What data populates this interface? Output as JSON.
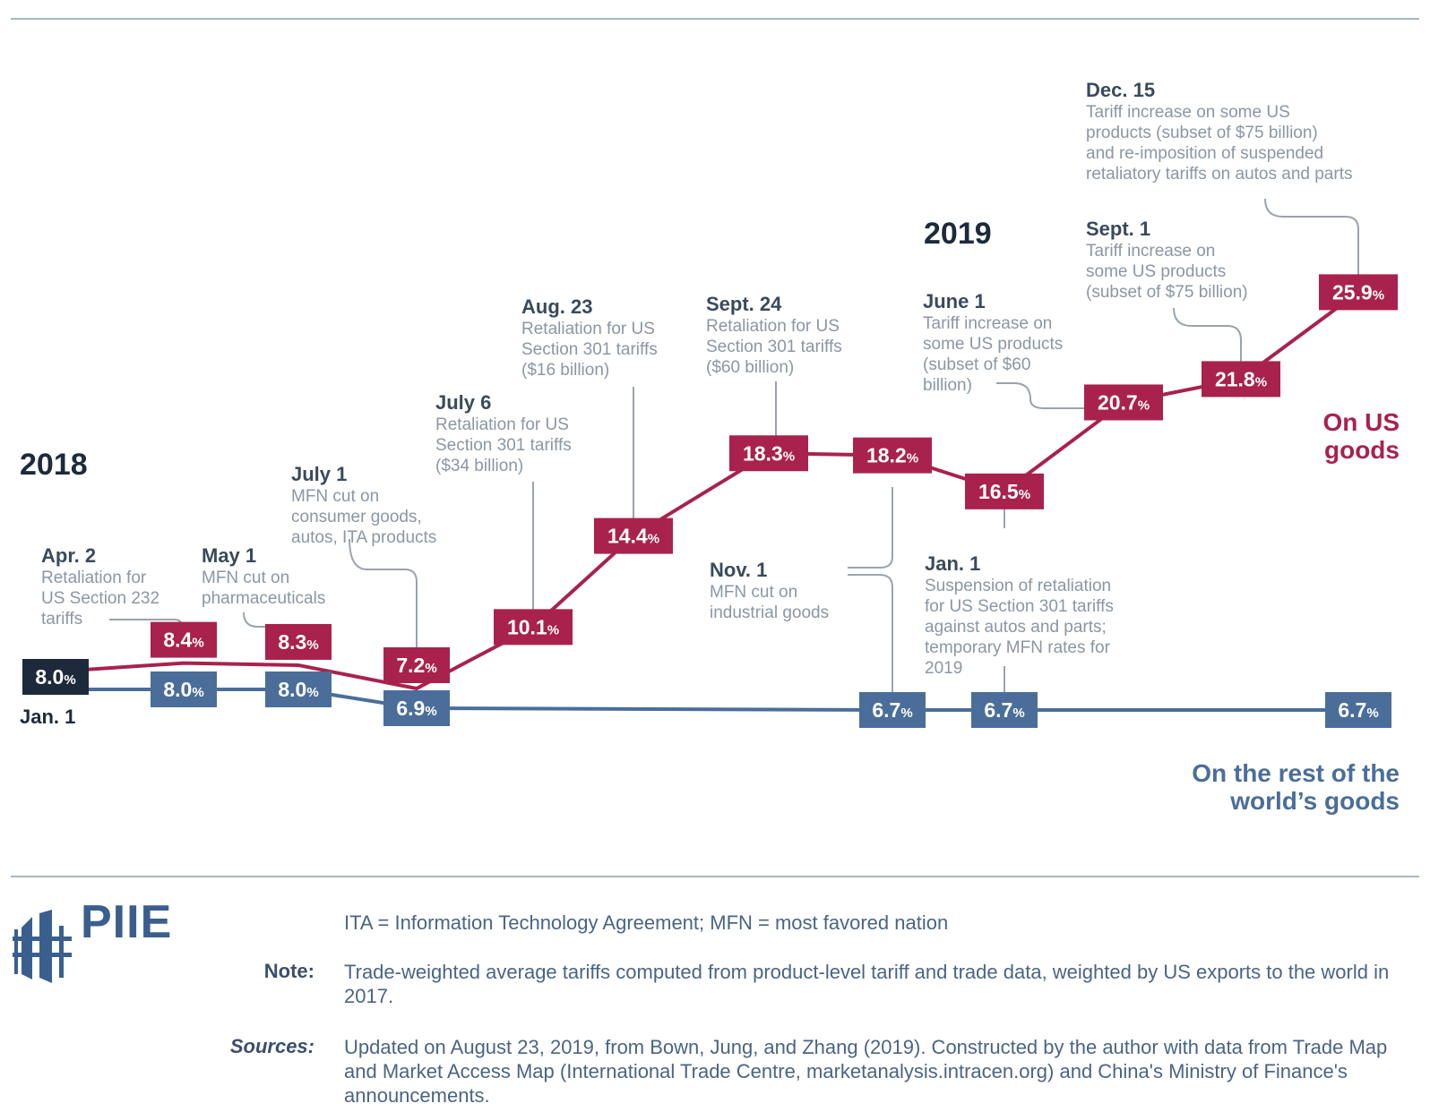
{
  "years": {
    "y2018": "2018",
    "y2019": "2019"
  },
  "chart_data": {
    "type": "line",
    "unit": "%",
    "colors": {
      "us": "#a8224d",
      "world": "#4a6e99",
      "start": "#1c2a3b",
      "leader": "#9aa3ad"
    },
    "series": [
      {
        "name": "On US goods",
        "points": [
          {
            "date": "2018-01-01",
            "value": 8.0,
            "label": "8.0"
          },
          {
            "date": "2018-04-02",
            "value": 8.4,
            "label": "8.4"
          },
          {
            "date": "2018-05-01",
            "value": 8.3,
            "label": "8.3"
          },
          {
            "date": "2018-07-01",
            "value": 7.2,
            "label": "7.2"
          },
          {
            "date": "2018-07-06",
            "value": 10.1,
            "label": "10.1"
          },
          {
            "date": "2018-08-23",
            "value": 14.4,
            "label": "14.4"
          },
          {
            "date": "2018-09-24",
            "value": 18.3,
            "label": "18.3"
          },
          {
            "date": "2018-11-01",
            "value": 18.2,
            "label": "18.2"
          },
          {
            "date": "2019-01-01",
            "value": 16.5,
            "label": "16.5"
          },
          {
            "date": "2019-06-01",
            "value": 20.7,
            "label": "20.7"
          },
          {
            "date": "2019-09-01",
            "value": 21.8,
            "label": "21.8"
          },
          {
            "date": "2019-12-15",
            "value": 25.9,
            "label": "25.9"
          }
        ]
      },
      {
        "name": "On the rest of the world’s goods",
        "points": [
          {
            "date": "2018-01-01",
            "value": 8.0,
            "label": "8.0"
          },
          {
            "date": "2018-04-02",
            "value": 8.0,
            "label": "8.0"
          },
          {
            "date": "2018-05-01",
            "value": 8.0,
            "label": "8.0"
          },
          {
            "date": "2018-07-01",
            "value": 6.9,
            "label": "6.9"
          },
          {
            "date": "2018-11-01",
            "value": 6.7,
            "label": "6.7"
          },
          {
            "date": "2019-01-01",
            "value": 6.7,
            "label": "6.7"
          },
          {
            "date": "2019-12-15",
            "value": 6.7,
            "label": "6.7"
          }
        ]
      }
    ],
    "start_label": "Jan. 1",
    "series_labels": {
      "us": "On US\ngoods",
      "world": "On the rest of the\nworld’s goods"
    },
    "annotations": [
      {
        "date": "Apr. 2",
        "text": "Retaliation for\nUS Section 232\ntariffs"
      },
      {
        "date": "May 1",
        "text": "MFN cut on\npharmaceuticals"
      },
      {
        "date": "July 1",
        "text": "MFN cut on\nconsumer goods,\nautos, ITA products"
      },
      {
        "date": "July 6",
        "text": "Retaliation for US\nSection 301 tariffs\n($34 billion)"
      },
      {
        "date": "Aug. 23",
        "text": "Retaliation for US\nSection 301 tariffs\n($16 billion)"
      },
      {
        "date": "Sept. 24",
        "text": "Retaliation for US\nSection 301 tariffs\n($60 billion)"
      },
      {
        "date": "Nov. 1",
        "text": "MFN cut on\nindustrial goods"
      },
      {
        "date": "Jan. 1",
        "text": "Suspension of retaliation\nfor US Section 301 tariffs\nagainst autos and parts;\ntemporary MFN rates for\n2019"
      },
      {
        "date": "June 1",
        "text": "Tariff increase on\nsome US products\n(subset of $60\nbillion)"
      },
      {
        "date": "Sept. 1",
        "text": "Tariff increase on\nsome US products\n(subset of $75 billion)"
      },
      {
        "date": "Dec. 15",
        "text": "Tariff increase on some US\nproducts (subset of $75 billion)\nand re-imposition of suspended\nretaliatory tariffs on autos and parts"
      }
    ]
  },
  "footer": {
    "logo": "PIIE",
    "abbrev": "ITA = Information Technology Agreement; MFN = most favored nation",
    "note_label": "Note:",
    "note": "Trade-weighted average tariffs computed from product-level tariff and trade data, weighted by US exports to the world in 2017.",
    "sources_label": "Sources:",
    "sources": "Updated on August 23, 2019, from Bown, Jung, and Zhang (2019). Constructed by the author with data from Trade Map and Market Access Map (International Trade Centre, marketanalysis.intracen.org) and China's Ministry of Finance's announcements."
  }
}
